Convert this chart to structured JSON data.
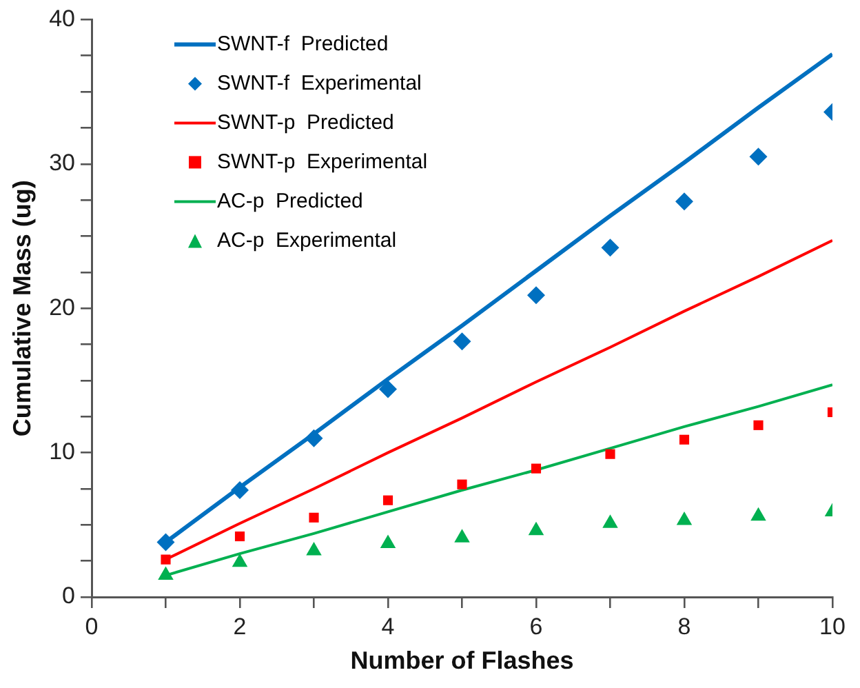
{
  "chart_data": {
    "type": "line",
    "xlabel": "Number of Flashes",
    "ylabel": "Cumulative Mass (ug)",
    "x": [
      1,
      2,
      3,
      4,
      5,
      6,
      7,
      8,
      9,
      10
    ],
    "xlim": [
      0,
      10
    ],
    "xticks": [
      0,
      {
        "value": 1,
        "label": null
      },
      2,
      {
        "value": 3,
        "label": null
      },
      4,
      {
        "value": 5,
        "label": null
      },
      6,
      {
        "value": 7,
        "label": null
      },
      8,
      {
        "value": 9,
        "label": null
      },
      10
    ],
    "ylim": [
      0,
      40
    ],
    "yticks": [
      0,
      {
        "value": 2.5,
        "label": null
      },
      {
        "value": 5,
        "label": null
      },
      {
        "value": 7.5,
        "label": null
      },
      10,
      {
        "value": 12.5,
        "label": null
      },
      {
        "value": 15,
        "label": null
      },
      {
        "value": 17.5,
        "label": null
      },
      20,
      {
        "value": 22.5,
        "label": null
      },
      {
        "value": 25,
        "label": null
      },
      {
        "value": 27.5,
        "label": null
      },
      30,
      {
        "value": 32.5,
        "label": null
      },
      {
        "value": 35,
        "label": null
      },
      {
        "value": 37.5,
        "label": null
      },
      40
    ],
    "grid": false,
    "legend": "top left",
    "series": [
      {
        "type": "line",
        "name": "SWNT-f  Predicted",
        "color": "#0070c0",
        "marker": "none",
        "values": [
          3.8,
          7.6,
          11.3,
          15.1,
          18.8,
          22.6,
          26.4,
          30.1,
          33.9,
          37.6
        ]
      },
      {
        "type": "scatter",
        "name": "SWNT-f  Experimental",
        "color": "#0070c0",
        "marker": "diamond",
        "values": [
          3.8,
          7.4,
          11.0,
          14.4,
          17.7,
          20.9,
          24.2,
          27.4,
          30.5,
          33.6
        ]
      },
      {
        "type": "line",
        "name": "SWNT-p  Predicted",
        "color": "#ff0000",
        "marker": "none",
        "values": [
          2.6,
          5.1,
          7.5,
          10.0,
          12.4,
          14.9,
          17.3,
          19.8,
          22.2,
          24.7
        ]
      },
      {
        "type": "scatter",
        "name": "SWNT-p  Experimental",
        "color": "#ff0000",
        "marker": "square",
        "values": [
          2.6,
          4.2,
          5.5,
          6.7,
          7.8,
          8.9,
          9.9,
          10.9,
          11.9,
          12.8
        ]
      },
      {
        "type": "line",
        "name": "AC-p  Predicted",
        "color": "#00b050",
        "marker": "none",
        "values": [
          1.5,
          3.0,
          4.4,
          5.9,
          7.4,
          8.8,
          10.3,
          11.8,
          13.2,
          14.7
        ]
      },
      {
        "type": "scatter",
        "name": "AC-p  Experimental",
        "color": "#00b050",
        "marker": "triangle",
        "values": [
          1.5,
          2.4,
          3.2,
          3.7,
          4.1,
          4.6,
          5.1,
          5.3,
          5.6,
          5.9
        ]
      }
    ]
  }
}
